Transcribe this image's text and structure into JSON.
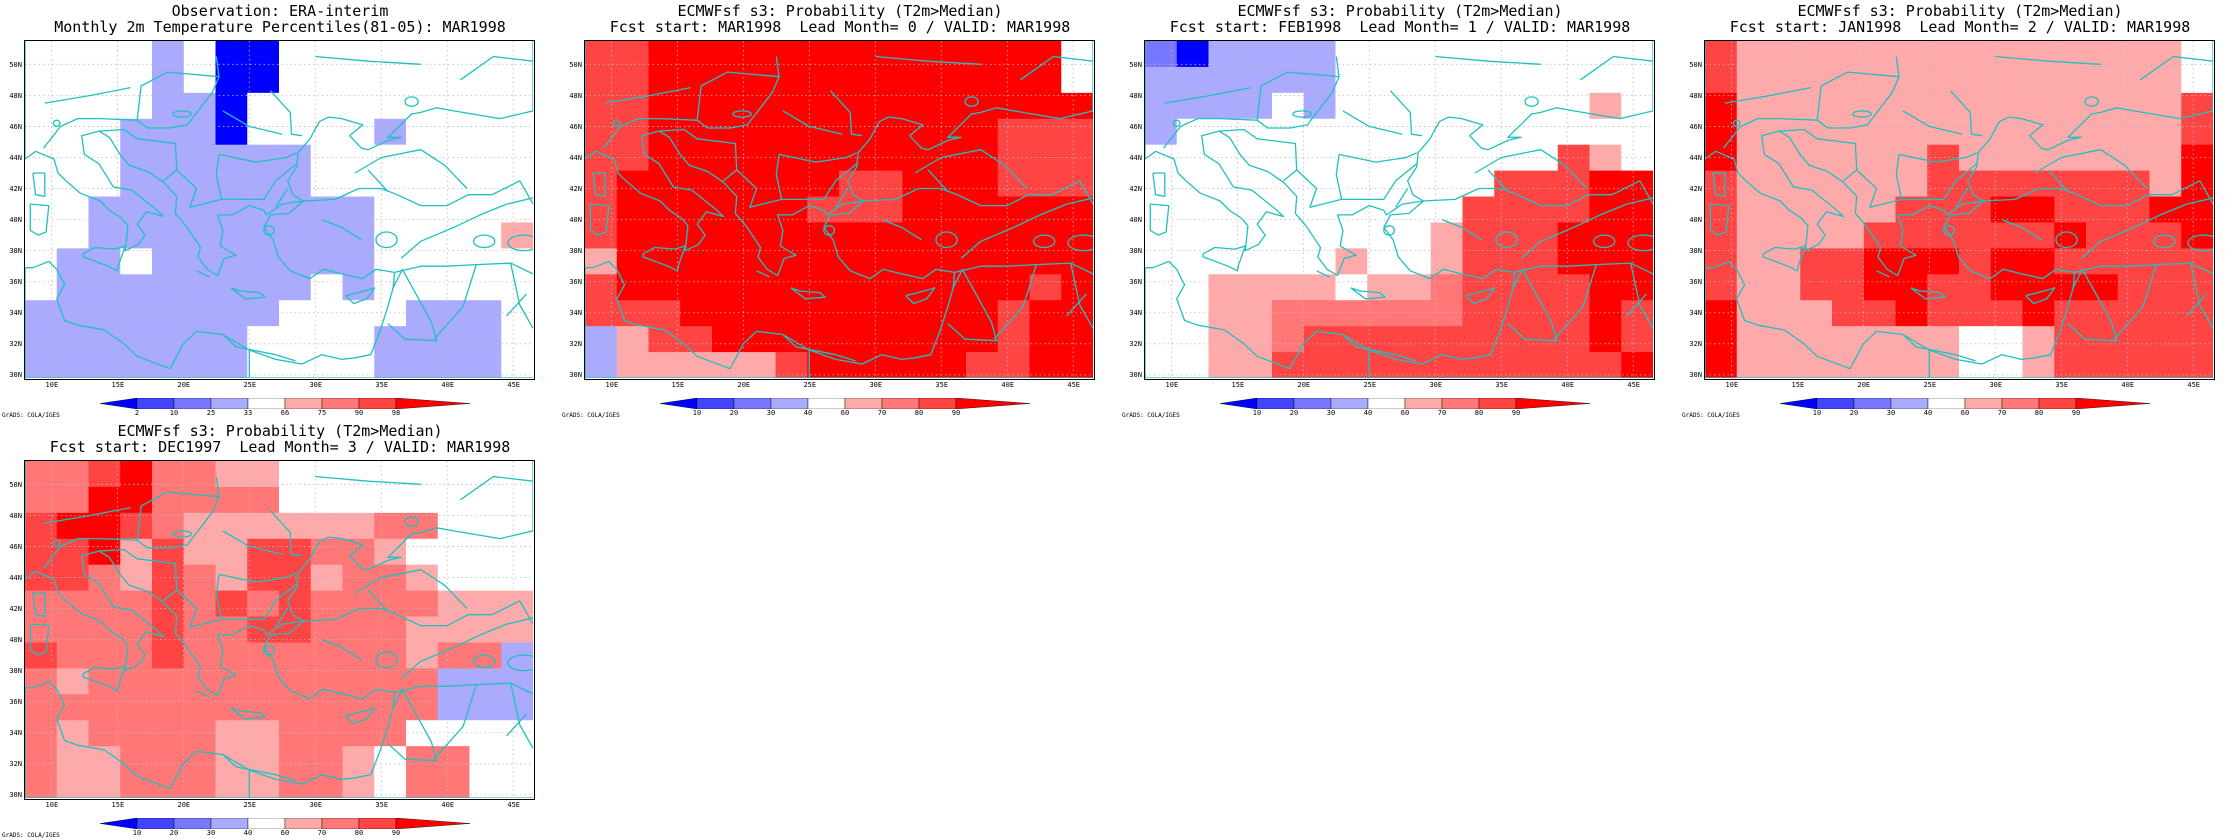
{
  "colors": {
    "coast": "#20c0c0",
    "grid": "#bbbbbb",
    "levels": [
      "#0000ff",
      "#4444ff",
      "#7777ff",
      "#aaaaff",
      "#ffffff",
      "#ffaaaa",
      "#ff7777",
      "#ff4444",
      "#ff0000"
    ]
  },
  "lat_labels": [
    "50N",
    "48N",
    "46N",
    "44N",
    "42N",
    "40N",
    "38N",
    "36N",
    "34N",
    "32N",
    "30N"
  ],
  "lon_labels": [
    "10E",
    "15E",
    "20E",
    "25E",
    "30E",
    "35E",
    "40E",
    "45E"
  ],
  "credit": "GrADS: COLA/IGES",
  "panels": [
    {
      "title1": "Observation: ERA-interim",
      "title2": "Monthly 2m Temperature Percentiles(81-05): MAR1998",
      "colorbar_labels": [
        "2",
        "10",
        "25",
        "33",
        "66",
        "75",
        "90",
        "98"
      ],
      "grid": [
        "4444340044444444",
        "4444340044444444",
        "4444330444444444",
        "4443330444434444",
        "4443333334444444",
        "4443333334444444",
        "4433333333344444",
        "4433333333344445",
        "4334333333344444",
        "4333333334344444",
        "3333333344443334",
        "3333333444433334",
        "3333333444433334"
      ]
    },
    {
      "title1": "ECMWFsf s3: Probability (T2m>Median)",
      "title2": "Fcst start: MAR1998  Lead Month= 0 / VALID: MAR1998",
      "colorbar_labels": [
        "10",
        "20",
        "30",
        "40",
        "60",
        "70",
        "80",
        "90"
      ],
      "grid": [
        "7788888888888884",
        "7788888888888884",
        "7788888888888888",
        "7788888888888777",
        "7788888888888777",
        "7888888877888777",
        "7888888777888888",
        "7888888888888888",
        "5888888888888888",
        "7888888888888878",
        "7778888888888788",
        "3577888888888788",
        "3555557888887788"
      ]
    },
    {
      "title1": "ECMWFsf s3: Probability (T2m>Median)",
      "title2": "Fcst start: FEB1998  Lead Month= 1 / VALID: MAR1998",
      "colorbar_labels": [
        "10",
        "20",
        "30",
        "40",
        "60",
        "70",
        "80",
        "90"
      ],
      "grid": [
        "2033334444444444",
        "3333334444444444",
        "3333434444444454",
        "3444444444444444",
        "4444444444444754",
        "4444444444477788",
        "4444444444777788",
        "4444444445777888",
        "4444445445777888",
        "4455554556777788",
        "4455666666777787",
        "4455677777777787",
        "4455777777777778"
      ]
    },
    {
      "title1": "ECMWFsf s3: Probability (T2m>Median)",
      "title2": "Fcst start: JAN1998  Lead Month= 2 / VALID: MAR1998",
      "colorbar_labels": [
        "10",
        "20",
        "30",
        "40",
        "60",
        "70",
        "80",
        "90"
      ],
      "grid": [
        "7555555555555554",
        "7555555555555554",
        "8555555555555557",
        "8555555555555557",
        "8555555755555558",
        "7555555777777758",
        "7555557778877788",
        "7555577777787778",
        "7557788878877777",
        "7557788778888777",
        "8555778777877777",
        "8555555544577777",
        "8555555544577777"
      ]
    },
    {
      "title1": "ECMWFsf s3: Probability (T2m>Median)",
      "title2": "Fcst start: DEC1997  Lead Month= 3 / VALID: MAR1998",
      "colorbar_labels": [
        "10",
        "20",
        "30",
        "40",
        "60",
        "70",
        "80",
        "90"
      ],
      "grid": [
        "6678665544444444",
        "6688666644444444",
        "7887655555566444",
        "7785755776654444",
        "7765765775665444",
        "6666767676666555",
        "6666766776665555",
        "7666766666665663",
        "6566666666666333",
        "6666666666666333",
        "6566665566664444",
        "6556665566546644",
        "6556665566546644"
      ]
    }
  ]
}
